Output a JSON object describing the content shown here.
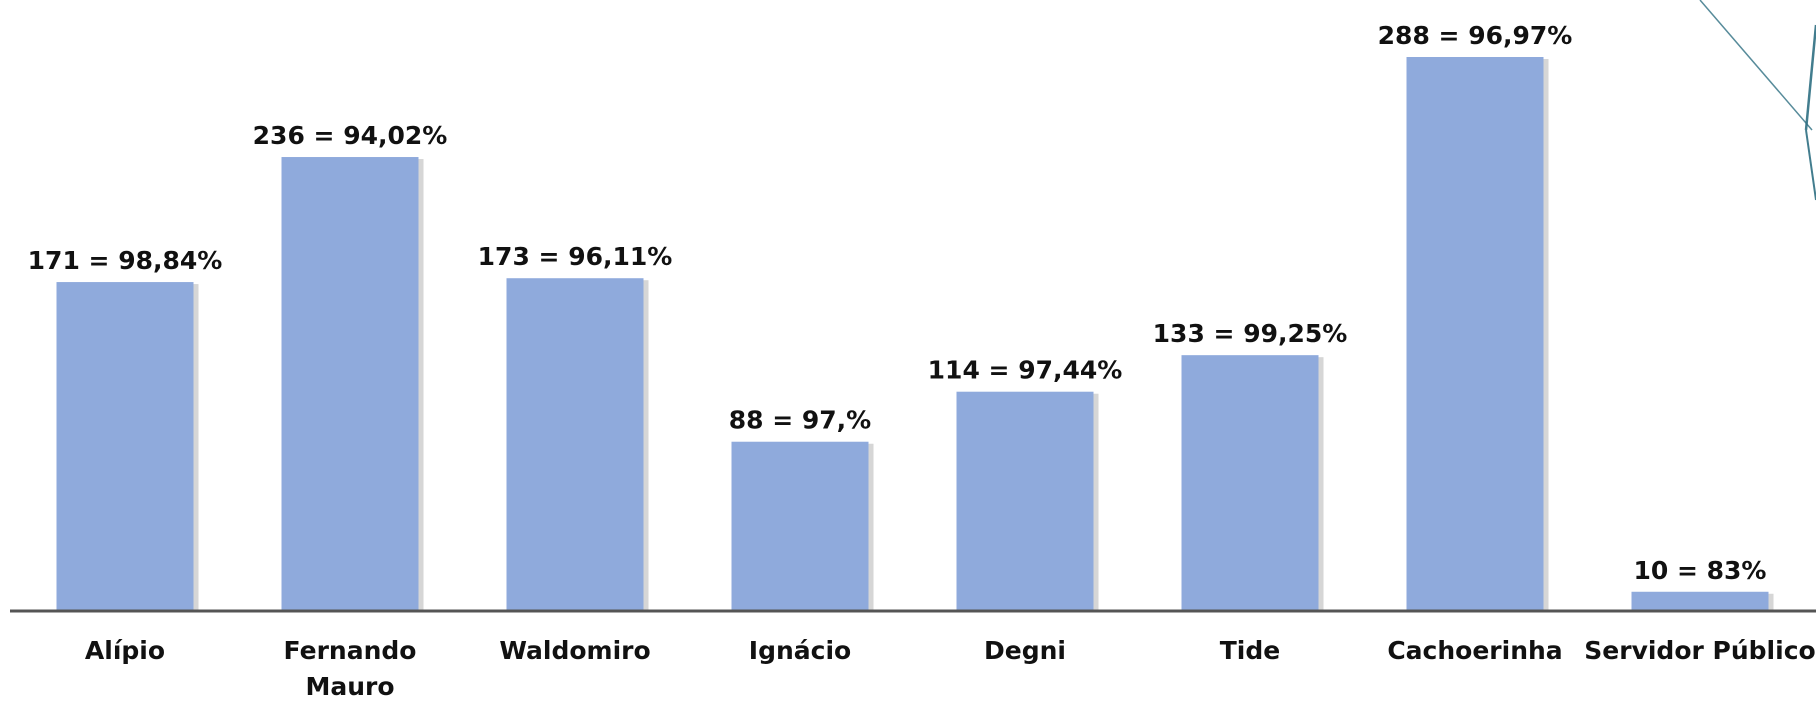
{
  "chart_data": {
    "type": "bar",
    "categories": [
      "Alípio",
      "Fernando Mauro",
      "Waldomiro",
      "Ignácio",
      "Degni",
      "Tide",
      "Cachoerinha",
      "Servidor Público"
    ],
    "category_lines": [
      [
        "Alípio"
      ],
      [
        "Fernando",
        "Mauro"
      ],
      [
        "Waldomiro"
      ],
      [
        "Ignácio"
      ],
      [
        "Degni"
      ],
      [
        "Tide"
      ],
      [
        "Cachoerinha"
      ],
      [
        "Servidor Público"
      ]
    ],
    "values": [
      171,
      236,
      173,
      88,
      114,
      133,
      288,
      10
    ],
    "data_labels": [
      "171 = 98,84%",
      "236 = 94,02%",
      "173 = 96,11%",
      "88 = 97,%",
      "114 = 97,44%",
      "133 = 99,25%",
      "288 = 96,97%",
      "10 = 83%"
    ],
    "ylim": [
      0,
      290
    ],
    "grid": false,
    "legend": "none",
    "colors": {
      "bar": "#8faadc",
      "bar_shadow": "#c4c4c4",
      "axis": "#555555",
      "accent_lines": "#2e6f82"
    }
  }
}
